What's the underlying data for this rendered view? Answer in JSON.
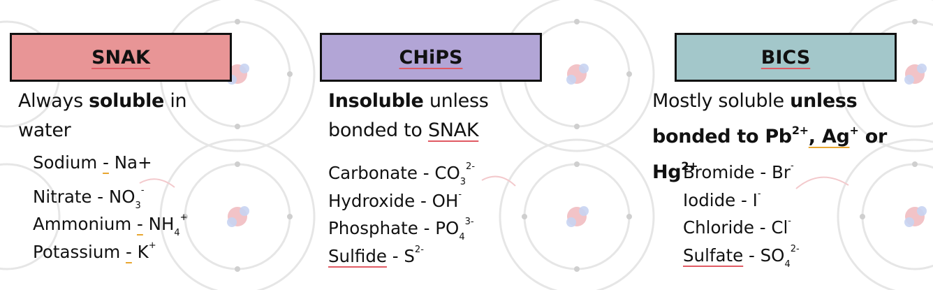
{
  "colors": {
    "snak_header": "#e89596",
    "chips_header": "#b2a5d6",
    "bics_header": "#a3c7ca",
    "accent_red": "#e05a63",
    "accent_orange": "#e8a630"
  },
  "snak": {
    "title": "SNAK",
    "intro_a": "Always ",
    "intro_b": "soluble",
    "intro_c": " in water",
    "items": [
      {
        "name": "Sodium ",
        "sep": "-",
        "formula": " Na+",
        "sub": "",
        "sup": ""
      },
      {
        "name": "Nitrate - NO",
        "sep": "",
        "formula": "",
        "sub": "3",
        "sup": "-"
      },
      {
        "name": "Ammonium ",
        "sep": "-",
        "formula": " NH",
        "sub": "4",
        "sup": "+"
      },
      {
        "name": "Potassium ",
        "sep": "-",
        "formula": " K",
        "sub": "",
        "sup": "+"
      }
    ]
  },
  "chips": {
    "title": "CHiPS",
    "intro_a": "Insoluble",
    "intro_b": " unless bonded to ",
    "intro_c": "SNAK",
    "items": [
      {
        "name": "Carbonate - CO",
        "sub": "3",
        "sup": "2-"
      },
      {
        "name": "Hydroxide - OH",
        "sub": "",
        "sup": "-"
      },
      {
        "name": "Phosphate - PO",
        "sub": "4",
        "sup": "3-"
      },
      {
        "name": "Sulfide",
        "rest": " - S",
        "sub": "",
        "sup": "2-"
      }
    ]
  },
  "bics": {
    "title": "BICS",
    "intro_a": "Mostly soluble ",
    "intro_b": "unless bonded to Pb",
    "intro_b_sup": "2+",
    "intro_c": ", Ag",
    "intro_c_sup": "+",
    "intro_d": " or",
    "intro_e": "Hg",
    "intro_e_sup": "2+",
    "items": [
      {
        "name": "Bromide - Br",
        "sub": "",
        "sup": "-"
      },
      {
        "name": "Iodide - I",
        "sub": "",
        "sup": "-"
      },
      {
        "name": "Chloride - Cl",
        "sub": "",
        "sup": "-"
      },
      {
        "name": "Sulfate",
        "rest": " - SO",
        "sub": "4",
        "sup": "2-"
      }
    ]
  }
}
